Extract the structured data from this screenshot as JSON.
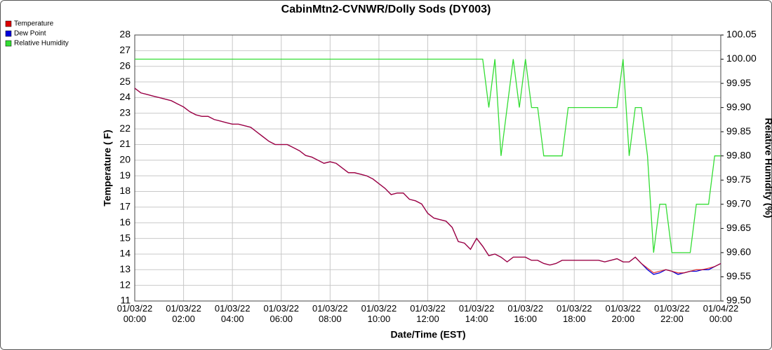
{
  "chart_data": {
    "type": "line",
    "title": "CabinMtn2-CVNWR/Dolly Sods (DY003)",
    "x_label": "Date/Time (EST)",
    "y_label": "Temperature ( F)",
    "y2_label": "Relative Humidity (%)",
    "grid": true,
    "legend": "upper-left",
    "x": [
      0,
      0.25,
      0.5,
      0.75,
      1,
      1.25,
      1.5,
      1.75,
      2,
      2.25,
      2.5,
      2.75,
      3,
      3.25,
      3.5,
      3.75,
      4,
      4.25,
      4.5,
      4.75,
      5,
      5.25,
      5.5,
      5.75,
      6,
      6.25,
      6.5,
      6.75,
      7,
      7.25,
      7.5,
      7.75,
      8,
      8.25,
      8.5,
      8.75,
      9,
      9.25,
      9.5,
      9.75,
      10,
      10.25,
      10.5,
      10.75,
      11,
      11.25,
      11.5,
      11.75,
      12,
      12.25,
      12.5,
      12.75,
      13,
      13.25,
      13.5,
      13.75,
      14,
      14.25,
      14.5,
      14.75,
      15,
      15.25,
      15.5,
      15.75,
      16,
      16.25,
      16.5,
      16.75,
      17,
      17.25,
      17.5,
      17.75,
      18,
      18.25,
      18.5,
      18.75,
      19,
      19.25,
      19.5,
      19.75,
      20,
      20.25,
      20.5,
      20.75,
      21,
      21.25,
      21.5,
      21.75,
      22,
      22.25,
      22.5,
      22.75,
      23,
      23.25,
      23.5,
      23.75,
      24
    ],
    "xlim": [
      0,
      24
    ],
    "xticks": [
      {
        "value": 0,
        "label": "01/03/22 00:00"
      },
      {
        "value": 2,
        "label": "01/03/22 02:00"
      },
      {
        "value": 4,
        "label": "01/03/22 04:00"
      },
      {
        "value": 6,
        "label": "01/03/22 06:00"
      },
      {
        "value": 8,
        "label": "01/03/22 08:00"
      },
      {
        "value": 10,
        "label": "01/03/22 10:00"
      },
      {
        "value": 12,
        "label": "01/03/22 12:00"
      },
      {
        "value": 14,
        "label": "01/03/22 14:00"
      },
      {
        "value": 16,
        "label": "01/03/22 16:00"
      },
      {
        "value": 18,
        "label": "01/03/22 18:00"
      },
      {
        "value": 20,
        "label": "01/03/22 20:00"
      },
      {
        "value": 22,
        "label": "01/03/22 22:00"
      },
      {
        "value": 24,
        "label": "01/04/22 00:00"
      }
    ],
    "ylim": [
      11,
      28
    ],
    "yticks": [
      11,
      12,
      13,
      14,
      15,
      16,
      17,
      18,
      19,
      20,
      21,
      22,
      23,
      24,
      25,
      26,
      27,
      28
    ],
    "y2lim": [
      99.5,
      100.05
    ],
    "y2ticks": [
      {
        "value": 99.5,
        "label": "99.50"
      },
      99.55,
      {
        "value": 99.6,
        "label": "99.60"
      },
      99.65,
      {
        "value": 99.7,
        "label": "99.70"
      },
      99.75,
      {
        "value": 99.8,
        "label": "99.80"
      },
      99.85,
      {
        "value": 99.9,
        "label": "99.90"
      },
      99.95,
      {
        "value": 100,
        "label": "100.00"
      },
      100.05
    ],
    "series": [
      {
        "name": "Temperature",
        "color": "#dd0000",
        "values": [
          24.6,
          24.3,
          24.2,
          24.1,
          24.0,
          23.9,
          23.8,
          23.6,
          23.4,
          23.1,
          22.9,
          22.8,
          22.8,
          22.6,
          22.5,
          22.4,
          22.3,
          22.3,
          22.2,
          22.1,
          21.8,
          21.5,
          21.2,
          21.0,
          21.0,
          21.0,
          20.8,
          20.6,
          20.3,
          20.2,
          20.0,
          19.8,
          19.9,
          19.8,
          19.5,
          19.2,
          19.2,
          19.1,
          19.0,
          18.8,
          18.5,
          18.2,
          17.8,
          17.9,
          17.9,
          17.5,
          17.4,
          17.2,
          16.6,
          16.3,
          16.2,
          16.1,
          15.7,
          14.8,
          14.7,
          14.3,
          15.0,
          14.5,
          13.9,
          14.0,
          13.8,
          13.5,
          13.8,
          13.8,
          13.8,
          13.6,
          13.6,
          13.4,
          13.3,
          13.4,
          13.6,
          13.6,
          13.6,
          13.6,
          13.6,
          13.6,
          13.6,
          13.5,
          13.6,
          13.7,
          13.5,
          13.5,
          13.8,
          13.4,
          13.1,
          12.8,
          12.9,
          13.0,
          12.9,
          12.8,
          12.8,
          12.9,
          13.0,
          13.0,
          13.1,
          13.2,
          13.4
        ]
      },
      {
        "name": "Dew Point",
        "color": "#0000dd",
        "values": [
          24.6,
          24.3,
          24.2,
          24.1,
          24.0,
          23.9,
          23.8,
          23.6,
          23.4,
          23.1,
          22.9,
          22.8,
          22.8,
          22.6,
          22.5,
          22.4,
          22.3,
          22.3,
          22.2,
          22.1,
          21.8,
          21.5,
          21.2,
          21.0,
          21.0,
          21.0,
          20.8,
          20.6,
          20.3,
          20.2,
          20.0,
          19.8,
          19.9,
          19.8,
          19.5,
          19.2,
          19.2,
          19.1,
          19.0,
          18.8,
          18.5,
          18.2,
          17.8,
          17.9,
          17.9,
          17.5,
          17.4,
          17.2,
          16.6,
          16.3,
          16.2,
          16.1,
          15.7,
          14.8,
          14.7,
          14.3,
          15.0,
          14.5,
          13.9,
          14.0,
          13.8,
          13.5,
          13.8,
          13.8,
          13.8,
          13.6,
          13.6,
          13.4,
          13.3,
          13.4,
          13.6,
          13.6,
          13.6,
          13.6,
          13.6,
          13.6,
          13.6,
          13.5,
          13.6,
          13.7,
          13.5,
          13.5,
          13.8,
          13.4,
          13.0,
          12.7,
          12.8,
          13.0,
          12.9,
          12.7,
          12.8,
          12.9,
          12.9,
          13.0,
          13.0,
          13.2,
          13.4
        ]
      },
      {
        "name": "Relative Humidity",
        "color": "#33dd33",
        "axis": "y2",
        "values": [
          100,
          100,
          100,
          100,
          100,
          100,
          100,
          100,
          100,
          100,
          100,
          100,
          100,
          100,
          100,
          100,
          100,
          100,
          100,
          100,
          100,
          100,
          100,
          100,
          100,
          100,
          100,
          100,
          100,
          100,
          100,
          100,
          100,
          100,
          100,
          100,
          100,
          100,
          100,
          100,
          100,
          100,
          100,
          100,
          100,
          100,
          100,
          100,
          100,
          100,
          100,
          100,
          100,
          100,
          100,
          100,
          100,
          100,
          99.9,
          100,
          99.8,
          99.9,
          100,
          99.9,
          100,
          99.9,
          99.9,
          99.8,
          99.8,
          99.8,
          99.8,
          99.9,
          99.9,
          99.9,
          99.9,
          99.9,
          99.9,
          99.9,
          99.9,
          99.9,
          100,
          99.8,
          99.9,
          99.9,
          99.8,
          99.6,
          99.7,
          99.7,
          99.6,
          99.6,
          99.6,
          99.6,
          99.7,
          99.7,
          99.7,
          99.8,
          99.8
        ]
      }
    ]
  }
}
